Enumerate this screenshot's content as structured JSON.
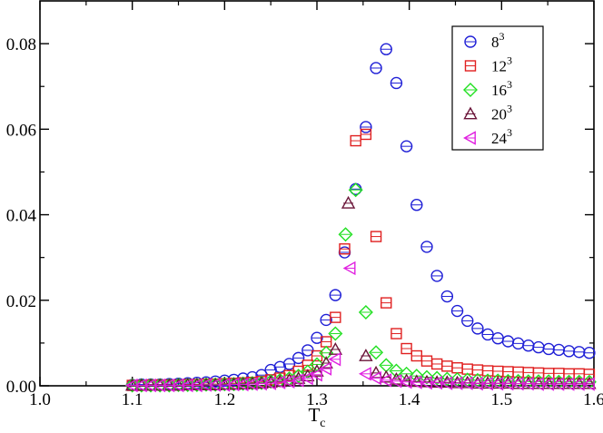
{
  "chart_data": {
    "type": "scatter",
    "title": "",
    "xlabel": "T",
    "xlabel_subscript": "c",
    "ylabel": "",
    "xlim": [
      1.0,
      1.6
    ],
    "ylim": [
      0.0,
      0.09
    ],
    "x_ticks": [
      "1.0",
      "1.1",
      "1.2",
      "1.3",
      "1.4",
      "1.5",
      "1.6"
    ],
    "y_ticks": [
      "0.00",
      "0.02",
      "0.04",
      "0.06",
      "0.08"
    ],
    "grid": false,
    "legend_position": "top-right",
    "series": [
      {
        "name": "8",
        "name_superscript": "3",
        "marker": "circle",
        "color": "#1f1fd6",
        "x": [
          1.1,
          1.11,
          1.12,
          1.13,
          1.14,
          1.15,
          1.16,
          1.17,
          1.18,
          1.19,
          1.2,
          1.21,
          1.22,
          1.23,
          1.24,
          1.25,
          1.26,
          1.27,
          1.28,
          1.29,
          1.3,
          1.31,
          1.32,
          1.33,
          1.342,
          1.353,
          1.364,
          1.375,
          1.386,
          1.397,
          1.408,
          1.419,
          1.43,
          1.441,
          1.452,
          1.463,
          1.474,
          1.485,
          1.496,
          1.507,
          1.518,
          1.529,
          1.54,
          1.551,
          1.562,
          1.573,
          1.584,
          1.595
        ],
        "y": [
          0.0002,
          0.0003,
          0.0003,
          0.0003,
          0.0004,
          0.0005,
          0.0006,
          0.0007,
          0.0008,
          0.001,
          0.0012,
          0.0014,
          0.0017,
          0.002,
          0.0025,
          0.0037,
          0.0044,
          0.0051,
          0.0065,
          0.0083,
          0.0112,
          0.0154,
          0.0212,
          0.0312,
          0.046,
          0.0605,
          0.0743,
          0.0787,
          0.0708,
          0.056,
          0.0423,
          0.0325,
          0.0257,
          0.0209,
          0.0175,
          0.0152,
          0.0134,
          0.012,
          0.0111,
          0.0104,
          0.0099,
          0.0094,
          0.009,
          0.0086,
          0.0084,
          0.0081,
          0.0079,
          0.0077
        ]
      },
      {
        "name": "12",
        "name_superscript": "3",
        "marker": "square",
        "color": "#e02020",
        "x": [
          1.1,
          1.11,
          1.12,
          1.13,
          1.14,
          1.15,
          1.16,
          1.17,
          1.18,
          1.19,
          1.2,
          1.21,
          1.22,
          1.23,
          1.24,
          1.25,
          1.26,
          1.27,
          1.28,
          1.29,
          1.3,
          1.31,
          1.32,
          1.33,
          1.342,
          1.353,
          1.364,
          1.375,
          1.386,
          1.397,
          1.408,
          1.419,
          1.43,
          1.441,
          1.452,
          1.463,
          1.474,
          1.485,
          1.496,
          1.507,
          1.518,
          1.529,
          1.54,
          1.551,
          1.562,
          1.573,
          1.584,
          1.595
        ],
        "y": [
          0.0001,
          0.0001,
          0.0002,
          0.0002,
          0.0002,
          0.0002,
          0.0003,
          0.0003,
          0.0004,
          0.0004,
          0.0005,
          0.0006,
          0.0007,
          0.0008,
          0.001,
          0.0014,
          0.0018,
          0.0024,
          0.0034,
          0.0048,
          0.007,
          0.0103,
          0.016,
          0.032,
          0.0573,
          0.0588,
          0.0349,
          0.0194,
          0.0122,
          0.0087,
          0.007,
          0.0058,
          0.0051,
          0.0046,
          0.0042,
          0.0039,
          0.0037,
          0.0035,
          0.0034,
          0.0033,
          0.0032,
          0.0031,
          0.003,
          0.0029,
          0.0029,
          0.0028,
          0.0028,
          0.0027
        ]
      },
      {
        "name": "16",
        "name_superscript": "3",
        "marker": "diamond",
        "color": "#20e020",
        "x": [
          1.1,
          1.11,
          1.12,
          1.13,
          1.14,
          1.15,
          1.16,
          1.17,
          1.18,
          1.19,
          1.2,
          1.21,
          1.22,
          1.23,
          1.24,
          1.25,
          1.26,
          1.27,
          1.28,
          1.29,
          1.3,
          1.31,
          1.32,
          1.331,
          1.342,
          1.353,
          1.364,
          1.375,
          1.386,
          1.397,
          1.408,
          1.419,
          1.43,
          1.441,
          1.452,
          1.463,
          1.474,
          1.485,
          1.496,
          1.507,
          1.518,
          1.529,
          1.54,
          1.551,
          1.562,
          1.573,
          1.584,
          1.595
        ],
        "y": [
          0.0001,
          0.0001,
          0.0001,
          0.0001,
          0.0001,
          0.0002,
          0.0002,
          0.0002,
          0.0003,
          0.0003,
          0.0004,
          0.0004,
          0.0005,
          0.0006,
          0.0007,
          0.001,
          0.0013,
          0.0017,
          0.0023,
          0.0033,
          0.005,
          0.0077,
          0.0122,
          0.0354,
          0.0458,
          0.0172,
          0.0078,
          0.0048,
          0.0035,
          0.0028,
          0.0023,
          0.002,
          0.0018,
          0.0016,
          0.0015,
          0.0014,
          0.0013,
          0.0012,
          0.0012,
          0.0011,
          0.0011,
          0.001,
          0.001,
          0.001,
          0.0009,
          0.0009,
          0.0009,
          0.0009
        ]
      },
      {
        "name": "20",
        "name_superscript": "3",
        "marker": "triangle-up",
        "color": "#6a1438",
        "x": [
          1.1,
          1.11,
          1.12,
          1.13,
          1.14,
          1.15,
          1.16,
          1.17,
          1.18,
          1.19,
          1.2,
          1.21,
          1.22,
          1.23,
          1.24,
          1.25,
          1.26,
          1.27,
          1.28,
          1.29,
          1.3,
          1.31,
          1.32,
          1.334,
          1.353,
          1.364,
          1.375,
          1.386,
          1.397,
          1.408,
          1.419,
          1.43,
          1.441,
          1.452,
          1.463,
          1.474,
          1.485,
          1.496,
          1.507,
          1.518,
          1.529,
          1.54,
          1.551,
          1.562,
          1.573,
          1.584,
          1.595
        ],
        "y": [
          0.0001,
          0.0001,
          0.0001,
          0.0001,
          0.0001,
          0.0001,
          0.0002,
          0.0002,
          0.0002,
          0.0002,
          0.0003,
          0.0003,
          0.0004,
          0.0005,
          0.0006,
          0.0008,
          0.001,
          0.0013,
          0.0017,
          0.0023,
          0.0034,
          0.0053,
          0.0085,
          0.0427,
          0.007,
          0.003,
          0.002,
          0.0015,
          0.0012,
          0.001,
          0.0009,
          0.0008,
          0.0008,
          0.0007,
          0.0007,
          0.0006,
          0.0006,
          0.0006,
          0.0006,
          0.0005,
          0.0005,
          0.0005,
          0.0005,
          0.0005,
          0.0005,
          0.0005,
          0.0005
        ]
      },
      {
        "name": "24",
        "name_superscript": "3",
        "marker": "triangle-left",
        "color": "#e020e0",
        "x": [
          1.1,
          1.11,
          1.12,
          1.13,
          1.14,
          1.15,
          1.16,
          1.17,
          1.18,
          1.19,
          1.2,
          1.21,
          1.22,
          1.23,
          1.24,
          1.25,
          1.26,
          1.27,
          1.28,
          1.29,
          1.3,
          1.31,
          1.32,
          1.336,
          1.353,
          1.364,
          1.375,
          1.386,
          1.397,
          1.408,
          1.419,
          1.43,
          1.441,
          1.452,
          1.463,
          1.474,
          1.485,
          1.496,
          1.507,
          1.518,
          1.529,
          1.54,
          1.551,
          1.562,
          1.573,
          1.584,
          1.595
        ],
        "y": [
          0.0001,
          0.0001,
          0.0001,
          0.0001,
          0.0001,
          0.0001,
          0.0001,
          0.0001,
          0.0002,
          0.0002,
          0.0002,
          0.0003,
          0.0003,
          0.0004,
          0.0005,
          0.0006,
          0.0008,
          0.001,
          0.0013,
          0.0018,
          0.0026,
          0.004,
          0.0062,
          0.0275,
          0.0028,
          0.0018,
          0.0013,
          0.0011,
          0.0009,
          0.0008,
          0.0007,
          0.0007,
          0.0006,
          0.0006,
          0.0006,
          0.0005,
          0.0005,
          0.0005,
          0.0005,
          0.0005,
          0.0005,
          0.0004,
          0.0004,
          0.0004,
          0.0004,
          0.0004,
          0.0004
        ]
      }
    ]
  }
}
